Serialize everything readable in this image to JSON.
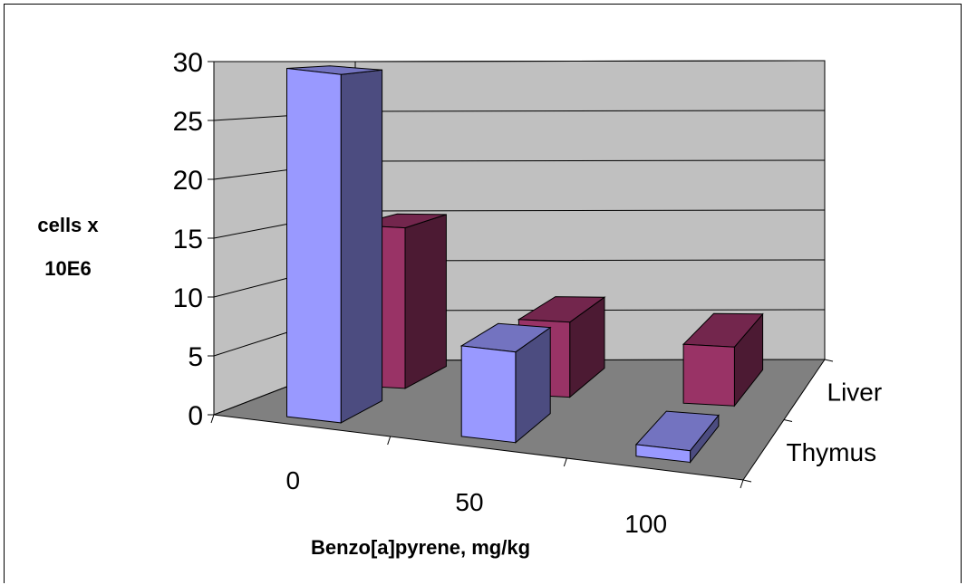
{
  "chart_data": {
    "type": "bar",
    "subtype": "3d-column",
    "xlabel": "Benzo[a]pyrene, mg/kg",
    "ylabel_lines": [
      "cells x",
      "10E6"
    ],
    "categories": [
      "0",
      "50",
      "100"
    ],
    "series": [
      {
        "name": "Thymus",
        "values": [
          30,
          7.8,
          1
        ],
        "color": "#9999FF"
      },
      {
        "name": "Liver",
        "values": [
          15,
          7,
          5.5
        ],
        "color": "#993366"
      }
    ],
    "ylim": [
      0,
      30
    ],
    "yticks": [
      0,
      5,
      10,
      15,
      20,
      25,
      30
    ],
    "grid": true
  },
  "colors": {
    "wall": "#C0C0C0",
    "floor": "#808080",
    "thymus_side": "#4C4C80",
    "thymus_top": "#7373C0",
    "liver_side": "#4C1A33",
    "liver_top": "#73264D"
  }
}
